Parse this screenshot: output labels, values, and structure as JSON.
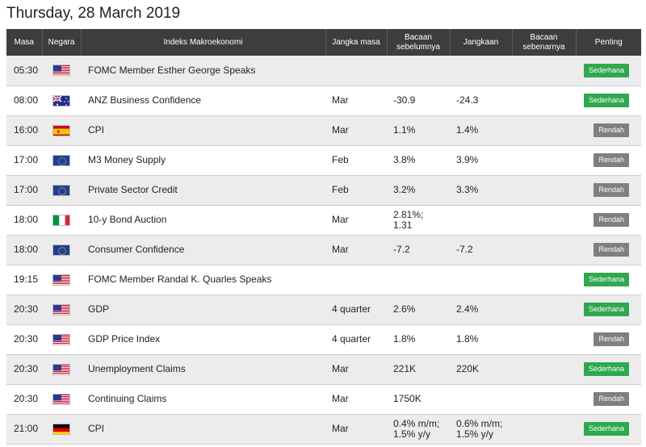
{
  "page_title": "Thursday, 28 March 2019",
  "columns": {
    "time": "Masa",
    "country": "Negara",
    "indicator": "Indeks Makroekonomi",
    "period": "Jangka masa",
    "previous": [
      "Bacaan",
      "sebelumnya"
    ],
    "forecast": "Jangkaan",
    "actual": [
      "Bacaan",
      "sebenarnya"
    ],
    "importance": "Penting"
  },
  "rows": [
    {
      "time": "05:30",
      "flag": "us-flag-icon",
      "event": "FOMC Member Esther George Speaks",
      "period": "",
      "previous": [],
      "forecast": [],
      "actual": "",
      "importance": "Sederhana",
      "level": "medium"
    },
    {
      "time": "08:00",
      "flag": "au-flag-icon",
      "event": "ANZ Business Confidence",
      "period": "Mar",
      "previous": [
        "-30.9"
      ],
      "forecast": [
        "-24.3"
      ],
      "actual": "",
      "importance": "Sederhana",
      "level": "medium"
    },
    {
      "time": "16:00",
      "flag": "es-flag-icon",
      "event": "CPI",
      "period": "Mar",
      "previous": [
        "1.1%"
      ],
      "forecast": [
        "1.4%"
      ],
      "actual": "",
      "importance": "Rendah",
      "level": "low"
    },
    {
      "time": "17:00",
      "flag": "eu-flag-icon",
      "event": "M3 Money Supply",
      "period": "Feb",
      "previous": [
        "3.8%"
      ],
      "forecast": [
        "3.9%"
      ],
      "actual": "",
      "importance": "Rendah",
      "level": "low"
    },
    {
      "time": "17:00",
      "flag": "eu-flag-icon",
      "event": "Private Sector Credit",
      "period": "Feb",
      "previous": [
        "3.2%"
      ],
      "forecast": [
        "3.3%"
      ],
      "actual": "",
      "importance": "Rendah",
      "level": "low"
    },
    {
      "time": "18:00",
      "flag": "it-flag-icon",
      "event": "10-y Bond Auction",
      "period": "Mar",
      "previous": [
        "2.81%;",
        "1.31"
      ],
      "forecast": [],
      "actual": "",
      "importance": "Rendah",
      "level": "low"
    },
    {
      "time": "18:00",
      "flag": "eu-flag-icon",
      "event": "Consumer Confidence",
      "period": "Mar",
      "previous": [
        "-7.2"
      ],
      "forecast": [
        "-7.2"
      ],
      "actual": "",
      "importance": "Rendah",
      "level": "low"
    },
    {
      "time": "19:15",
      "flag": "us-flag-icon",
      "event": "FOMC Member Randal K. Quarles Speaks",
      "period": "",
      "previous": [],
      "forecast": [],
      "actual": "",
      "importance": "Sederhana",
      "level": "medium"
    },
    {
      "time": "20:30",
      "flag": "us-flag-icon",
      "event": "GDP",
      "period": "4 quarter",
      "previous": [
        "2.6%"
      ],
      "forecast": [
        "2.4%"
      ],
      "actual": "",
      "importance": "Sederhana",
      "level": "medium"
    },
    {
      "time": "20:30",
      "flag": "us-flag-icon",
      "event": "GDP Price Index",
      "period": "4 quarter",
      "previous": [
        "1.8%"
      ],
      "forecast": [
        "1.8%"
      ],
      "actual": "",
      "importance": "Rendah",
      "level": "low"
    },
    {
      "time": "20:30",
      "flag": "us-flag-icon",
      "event": "Unemployment Claims",
      "period": "Mar",
      "previous": [
        "221K"
      ],
      "forecast": [
        "220K"
      ],
      "actual": "",
      "importance": "Sederhana",
      "level": "medium"
    },
    {
      "time": "20:30",
      "flag": "us-flag-icon",
      "event": "Continuing Claims",
      "period": "Mar",
      "previous": [
        "1750K"
      ],
      "forecast": [],
      "actual": "",
      "importance": "Rendah",
      "level": "low"
    },
    {
      "time": "21:00",
      "flag": "de-flag-icon",
      "event": "CPI",
      "period": "Mar",
      "previous": [
        "0.4% m/m;",
        "1.5% y/y"
      ],
      "forecast": [
        "0.6% m/m;",
        "1.5% y/y"
      ],
      "actual": "",
      "importance": "Sederhana",
      "level": "medium"
    }
  ],
  "colors": {
    "header_bg": "#3d3d3d",
    "medium": "#2fa84f",
    "low": "#7f7f7f",
    "row_alt": "#ececec"
  }
}
